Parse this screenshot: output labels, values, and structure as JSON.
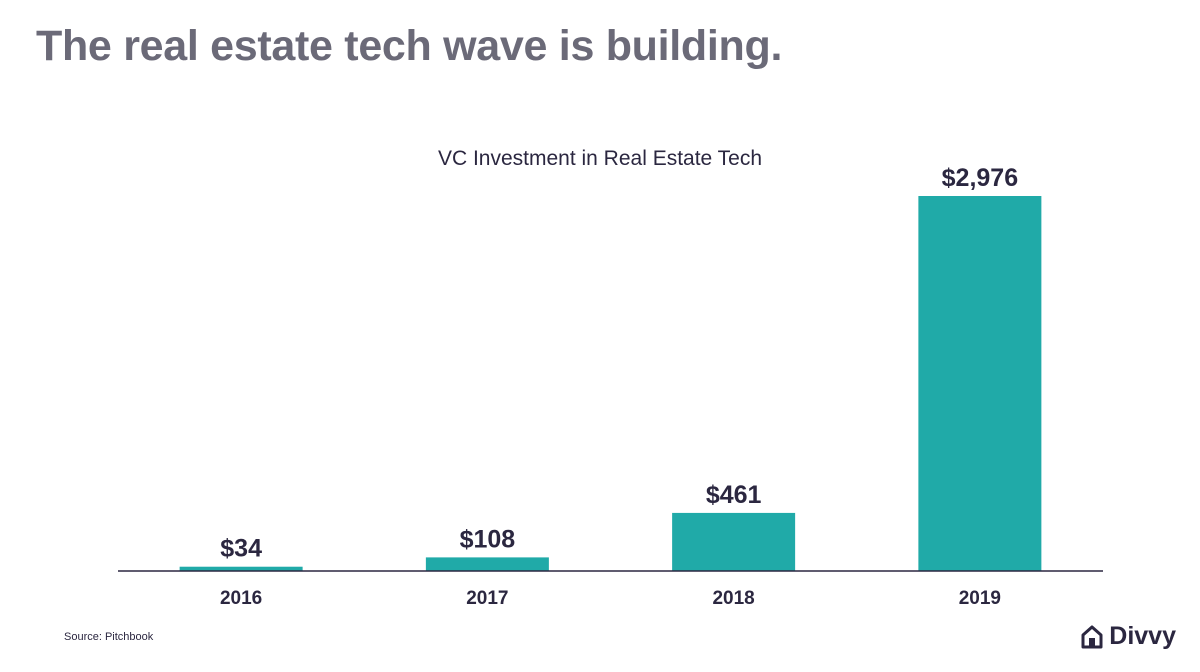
{
  "slide": {
    "title": "The real estate tech wave is building.",
    "source": "Source: Pitchbook",
    "brand_name": "Divvy",
    "brand_icon": "house-icon"
  },
  "colors": {
    "bar": "#20aaa8",
    "title": "#6b6a78",
    "text": "#2b2740",
    "axis": "#2b2740"
  },
  "chart_data": {
    "type": "bar",
    "title": "VC Investment in Real Estate Tech",
    "xlabel": "",
    "ylabel": "",
    "categories": [
      "2016",
      "2017",
      "2018",
      "2019"
    ],
    "values": [
      34,
      108,
      461,
      2976
    ],
    "data_labels": [
      "$34",
      "$108",
      "$461",
      "$2,976"
    ],
    "ylim": [
      0,
      2976
    ],
    "grid": false,
    "legend": "none"
  }
}
